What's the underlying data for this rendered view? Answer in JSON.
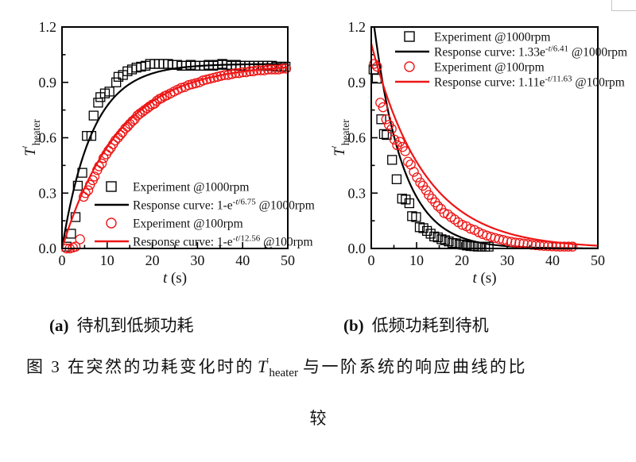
{
  "colors": {
    "black": "#000000",
    "red": "#ee1515",
    "text": "#111111",
    "corner_border": "#c6c6c6"
  },
  "captions": {
    "a_label": "(a)",
    "a_text": "待机到低频功耗",
    "b_label": "(b)",
    "b_text": "低频功耗到待机",
    "fig_prefix": "图 3 在突然的功耗变化时的",
    "fig_T": "T",
    "fig_T_prime": "′",
    "fig_T_sub": "heater",
    "fig_suffix": "与一阶系统的响应曲线的比",
    "fig_cont": "较"
  },
  "chart_data": [
    {
      "id": "a",
      "type": "scatter",
      "title": "",
      "xlabel": "t (s)",
      "xlabel_italic": "t",
      "xlabel_rest": " (s)",
      "ylabel": "T'heater",
      "ylabel_base": "T",
      "ylabel_prime": "′",
      "ylabel_sub": "heater",
      "xlim": [
        0,
        50
      ],
      "ylim": [
        0,
        1.2
      ],
      "xticks": [
        0,
        10,
        20,
        30,
        40,
        50
      ],
      "xtick_labels": [
        "0",
        "10",
        "20",
        "30",
        "40",
        "50"
      ],
      "xminor": [
        5,
        15,
        25,
        35,
        45
      ],
      "ytick_vals": [
        0,
        0.3,
        0.6,
        0.9,
        1.2
      ],
      "ytick_labels": [
        "0.0",
        "0.3",
        "0.6",
        "0.9",
        "1.2"
      ],
      "yminor": [
        0.15,
        0.45,
        0.75,
        1.05
      ],
      "grid": false,
      "legend_position": "inside lower right, no frame",
      "series": [
        {
          "name": "Experiment @1000rpm",
          "kind": "marker",
          "marker": "square",
          "color": "black",
          "points": [
            [
              1,
              0.01
            ],
            [
              2,
              0.08
            ],
            [
              3,
              0.17
            ],
            [
              3.5,
              0.34
            ],
            [
              4.5,
              0.41
            ],
            [
              5.5,
              0.61
            ],
            [
              6.5,
              0.61
            ],
            [
              7,
              0.72
            ],
            [
              8,
              0.79
            ],
            [
              8.5,
              0.82
            ],
            [
              9.5,
              0.84
            ],
            [
              10.5,
              0.85
            ],
            [
              12,
              0.9
            ],
            [
              12.5,
              0.93
            ],
            [
              13.5,
              0.94
            ],
            [
              14.5,
              0.96
            ],
            [
              15.5,
              0.97
            ],
            [
              16.5,
              0.98
            ],
            [
              17.5,
              0.985
            ],
            [
              18.5,
              0.99
            ],
            [
              19.5,
              1.0
            ],
            [
              20.5,
              1.0
            ],
            [
              21.5,
              1.0
            ],
            [
              22.5,
              1.0
            ],
            [
              23.5,
              1.0
            ],
            [
              24.5,
              0.995
            ],
            [
              25.5,
              0.995
            ],
            [
              26.5,
              0.99
            ],
            [
              27.5,
              0.99
            ],
            [
              28.5,
              0.995
            ],
            [
              29.5,
              0.99
            ],
            [
              30.5,
              0.99
            ],
            [
              31.5,
              0.99
            ],
            [
              32.5,
              0.995
            ],
            [
              33.5,
              0.99
            ],
            [
              34.5,
              0.995
            ],
            [
              35.5,
              1.0
            ],
            [
              36.5,
              0.995
            ],
            [
              37.5,
              0.99
            ],
            [
              38.5,
              0.995
            ],
            [
              39.5,
              0.99
            ],
            [
              40.5,
              0.99
            ],
            [
              41.5,
              0.99
            ],
            [
              42.5,
              0.99
            ],
            [
              43.5,
              0.99
            ],
            [
              44.5,
              0.99
            ],
            [
              45.5,
              0.99
            ],
            [
              46.5,
              0.99
            ],
            [
              47.5,
              0.985
            ],
            [
              48.5,
              0.985
            ],
            [
              49.5,
              0.985
            ]
          ]
        },
        {
          "name": "Response curve: 1-e^(-t/6.75) @1000rpm",
          "kind": "curve",
          "form": "rise",
          "amp": 1,
          "tau": 6.75,
          "color": "black",
          "label_pre": "Response curve: 1-e",
          "label_sup": "-t/6.75",
          "label_post": " @1000rpm"
        },
        {
          "name": "Experiment @100rpm",
          "kind": "marker",
          "marker": "circle",
          "color": "red",
          "points": [
            [
              1,
              0.0
            ],
            [
              1.7,
              0.0
            ],
            [
              2.4,
              0.005
            ],
            [
              3,
              0.01
            ],
            [
              4,
              0.05
            ],
            [
              4.8,
              0.28
            ],
            [
              5.2,
              0.3
            ],
            [
              5.8,
              0.315
            ],
            [
              6.2,
              0.345
            ],
            [
              6.8,
              0.37
            ],
            [
              7.2,
              0.39
            ],
            [
              7.8,
              0.425
            ],
            [
              8.2,
              0.445
            ],
            [
              8.8,
              0.46
            ],
            [
              9.2,
              0.49
            ],
            [
              9.8,
              0.51
            ],
            [
              10.3,
              0.53
            ],
            [
              10.8,
              0.545
            ],
            [
              11.3,
              0.565
            ],
            [
              11.8,
              0.585
            ],
            [
              12.4,
              0.6
            ],
            [
              12.9,
              0.615
            ],
            [
              13.4,
              0.63
            ],
            [
              14,
              0.65
            ],
            [
              14.5,
              0.66
            ],
            [
              15,
              0.675
            ],
            [
              15.6,
              0.69
            ],
            [
              16.1,
              0.7
            ],
            [
              16.7,
              0.72
            ],
            [
              17.2,
              0.73
            ],
            [
              17.8,
              0.74
            ],
            [
              18.3,
              0.75
            ],
            [
              18.9,
              0.76
            ],
            [
              19.4,
              0.77
            ],
            [
              20,
              0.78
            ],
            [
              20.5,
              0.785
            ],
            [
              21,
              0.8
            ],
            [
              21.6,
              0.81
            ],
            [
              22.1,
              0.815
            ],
            [
              22.7,
              0.825
            ],
            [
              23.2,
              0.83
            ],
            [
              24,
              0.84
            ],
            [
              24.8,
              0.85
            ],
            [
              25.6,
              0.86
            ],
            [
              26.4,
              0.87
            ],
            [
              27.2,
              0.875
            ],
            [
              28,
              0.885
            ],
            [
              28.8,
              0.89
            ],
            [
              29.6,
              0.895
            ],
            [
              30.4,
              0.9
            ],
            [
              31.2,
              0.91
            ],
            [
              32,
              0.915
            ],
            [
              32.8,
              0.92
            ],
            [
              33.6,
              0.925
            ],
            [
              34.4,
              0.93
            ],
            [
              35.2,
              0.935
            ],
            [
              36,
              0.94
            ],
            [
              36.8,
              0.94
            ],
            [
              37.6,
              0.945
            ],
            [
              38.4,
              0.95
            ],
            [
              39.2,
              0.95
            ],
            [
              40,
              0.955
            ],
            [
              40.8,
              0.955
            ],
            [
              41.6,
              0.96
            ],
            [
              42.4,
              0.96
            ],
            [
              43.2,
              0.965
            ],
            [
              44,
              0.965
            ],
            [
              44.8,
              0.965
            ],
            [
              45.6,
              0.97
            ],
            [
              46.4,
              0.97
            ],
            [
              47.2,
              0.97
            ],
            [
              48,
              0.97
            ],
            [
              48.8,
              0.975
            ],
            [
              49.6,
              0.975
            ]
          ]
        },
        {
          "name": "Response curve: 1-e^(-t/12.56) @100rpm",
          "kind": "curve",
          "form": "rise",
          "amp": 1,
          "tau": 12.56,
          "color": "red",
          "label_pre": "Response curve: 1-e",
          "label_sup": "-t/12.56",
          "label_post": " @100rpm"
        }
      ],
      "layout": {
        "frame": {
          "l": 78,
          "r": 362,
          "t": 34,
          "b": 313
        },
        "legend": {
          "sym_x": 140,
          "swatch_x1": 119,
          "swatch_x2": 162,
          "text_x": 167,
          "rows_y": [
            235,
            258,
            281,
            304
          ]
        },
        "xlabel_y": 356,
        "ylabel_x": 44
      }
    },
    {
      "id": "b",
      "type": "scatter",
      "title": "",
      "xlabel": "t (s)",
      "xlabel_italic": "t",
      "xlabel_rest": " (s)",
      "ylabel": "T'heater",
      "ylabel_base": "T",
      "ylabel_prime": "′",
      "ylabel_sub": "heater",
      "xlim": [
        0,
        50
      ],
      "ylim": [
        0,
        1.2
      ],
      "xticks": [
        0,
        10,
        20,
        30,
        40,
        50
      ],
      "xtick_labels": [
        "0",
        "10",
        "20",
        "30",
        "40",
        "50"
      ],
      "xminor": [
        5,
        15,
        25,
        35,
        45
      ],
      "ytick_vals": [
        0,
        0.3,
        0.6,
        0.9,
        1.2
      ],
      "ytick_labels": [
        "0.0",
        "0.3",
        "0.6",
        "0.9",
        "1.2"
      ],
      "yminor": [
        0.15,
        0.45,
        0.75,
        1.05
      ],
      "grid": false,
      "legend_position": "inside upper right, no frame",
      "series": [
        {
          "name": "Experiment @1000rpm",
          "kind": "marker",
          "marker": "square",
          "color": "black",
          "points": [
            [
              0.5,
              0.97
            ],
            [
              1.2,
              0.92
            ],
            [
              2.2,
              0.7
            ],
            [
              2.8,
              0.62
            ],
            [
              3.4,
              0.615
            ],
            [
              4.6,
              0.48
            ],
            [
              5.6,
              0.375
            ],
            [
              6.8,
              0.27
            ],
            [
              7.6,
              0.265
            ],
            [
              8.4,
              0.245
            ],
            [
              9,
              0.175
            ],
            [
              9.9,
              0.17
            ],
            [
              10.7,
              0.115
            ],
            [
              11.5,
              0.11
            ],
            [
              12.3,
              0.095
            ],
            [
              13.1,
              0.08
            ],
            [
              13.9,
              0.065
            ],
            [
              14.7,
              0.06
            ],
            [
              15.5,
              0.05
            ],
            [
              16.3,
              0.045
            ],
            [
              17.1,
              0.038
            ],
            [
              17.9,
              0.03
            ],
            [
              18.7,
              0.028
            ],
            [
              19.5,
              0.022
            ],
            [
              20.3,
              0.02
            ],
            [
              21.1,
              0.016
            ],
            [
              21.9,
              0.013
            ],
            [
              22.7,
              0.012
            ],
            [
              23.5,
              0.01
            ],
            [
              24.3,
              0.01
            ],
            [
              25.1,
              0.01
            ],
            [
              25.9,
              0.01
            ]
          ]
        },
        {
          "name": "Response curve: 1.33e^(-t/6.41) @1000rpm",
          "kind": "curve",
          "form": "decay",
          "amp": 1.33,
          "tau": 6.41,
          "color": "black",
          "label_pre": "Response curve: 1.33e",
          "label_sup": "-t/6.41",
          "label_post": " @1000rpm"
        },
        {
          "name": "Experiment @100rpm",
          "kind": "marker",
          "marker": "circle",
          "color": "red",
          "points": [
            [
              0.6,
              1.0
            ],
            [
              1.3,
              0.985
            ],
            [
              2.0,
              0.79
            ],
            [
              2.6,
              0.765
            ],
            [
              3.3,
              0.7
            ],
            [
              3.9,
              0.67
            ],
            [
              4.5,
              0.648
            ],
            [
              5.1,
              0.59
            ],
            [
              5.7,
              0.56
            ],
            [
              6.3,
              0.578
            ],
            [
              6.9,
              0.55
            ],
            [
              7.5,
              0.527
            ],
            [
              8.1,
              0.47
            ],
            [
              8.7,
              0.455
            ],
            [
              9.4,
              0.415
            ],
            [
              10.1,
              0.385
            ],
            [
              10.8,
              0.357
            ],
            [
              11.4,
              0.34
            ],
            [
              12.1,
              0.315
            ],
            [
              12.7,
              0.29
            ],
            [
              13.4,
              0.27
            ],
            [
              14.1,
              0.25
            ],
            [
              14.7,
              0.23
            ],
            [
              15.4,
              0.215
            ],
            [
              16.1,
              0.192
            ],
            [
              16.9,
              0.185
            ],
            [
              17.6,
              0.17
            ],
            [
              18.4,
              0.157
            ],
            [
              19.2,
              0.142
            ],
            [
              20.1,
              0.128
            ],
            [
              21,
              0.12
            ],
            [
              21.9,
              0.107
            ],
            [
              22.8,
              0.1
            ],
            [
              23.7,
              0.088
            ],
            [
              24.6,
              0.078
            ],
            [
              25.5,
              0.07
            ],
            [
              26.4,
              0.063
            ],
            [
              27.3,
              0.057
            ],
            [
              28.2,
              0.051
            ],
            [
              29.1,
              0.046
            ],
            [
              30,
              0.04
            ],
            [
              30.9,
              0.036
            ],
            [
              31.8,
              0.032
            ],
            [
              32.7,
              0.03
            ],
            [
              33.6,
              0.027
            ],
            [
              34.5,
              0.024
            ],
            [
              35.4,
              0.02
            ],
            [
              36.3,
              0.018
            ],
            [
              37.2,
              0.016
            ],
            [
              38.1,
              0.014
            ],
            [
              39,
              0.013
            ],
            [
              39.9,
              0.012
            ],
            [
              40.8,
              0.011
            ],
            [
              41.7,
              0.01
            ],
            [
              42.6,
              0.01
            ],
            [
              43.5,
              0.01
            ],
            [
              44.4,
              0.01
            ]
          ]
        },
        {
          "name": "Response curve: 1.11e^(-t/11.63) @100rpm",
          "kind": "curve",
          "form": "decay",
          "amp": 1.11,
          "tau": 11.63,
          "color": "red",
          "label_pre": "Response curve: 1.11e",
          "label_sup": "-t/11.63",
          "label_post": " @100rpm"
        }
      ],
      "layout": {
        "frame": {
          "l": 67,
          "r": 352,
          "t": 34,
          "b": 313
        },
        "legend": {
          "sym_x": 115,
          "swatch_x1": 97,
          "swatch_x2": 140,
          "text_x": 146,
          "rows_y": [
            46,
            65,
            84,
            103
          ]
        },
        "xlabel_y": 356,
        "ylabel_x": 33
      }
    }
  ]
}
